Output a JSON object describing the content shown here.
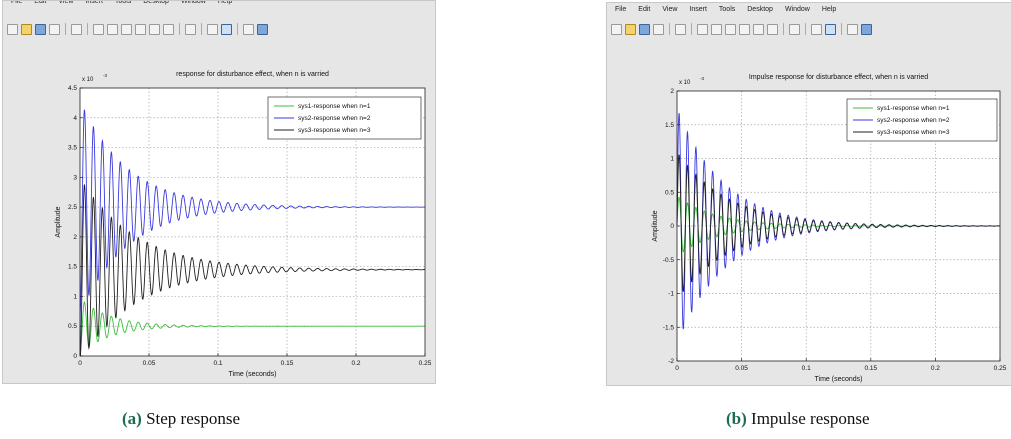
{
  "menu": [
    "File",
    "Edit",
    "View",
    "Insert",
    "Tools",
    "Desktop",
    "Window",
    "Help"
  ],
  "toolbar_icons": [
    "new-figure-icon",
    "open-file-icon",
    "save-icon",
    "print-icon",
    "edit-plot-icon",
    "zoom-in-icon",
    "zoom-out-icon",
    "pan-icon",
    "rotate-icon",
    "data-cursor-icon",
    "brush-icon",
    "link-plot-icon",
    "colorbar-icon",
    "legend-icon",
    "hide-plot-tools-icon",
    "show-plot-tools-icon"
  ],
  "captions": {
    "a": {
      "label": "(a)",
      "text": " Step response"
    },
    "b": {
      "label": "(b)",
      "text": " Impulse response"
    }
  },
  "chart_data": [
    {
      "type": "line",
      "title": "response for disturbance effect, when n is varried",
      "xlabel": "Time (seconds)",
      "ylabel": "Amplitude",
      "y_exponent": "x 10",
      "y_exponent_power": "-3",
      "xlim": [
        0,
        0.25
      ],
      "ylim": [
        0,
        0.0045
      ],
      "xticks": [
        0,
        0.05,
        0.1,
        0.15,
        0.2,
        0.25
      ],
      "xticklabels": [
        "0",
        "0.05",
        "0.1",
        "0.15",
        "0.2",
        "0.25"
      ],
      "yticks": [
        0,
        0.0005,
        0.001,
        0.0015,
        0.002,
        0.0025,
        0.003,
        0.0035,
        0.004,
        0.0045
      ],
      "yticklabels": [
        "0",
        "0.5",
        "1",
        "1.5",
        "2",
        "2.5",
        "3",
        "3.5",
        "4",
        "4.5"
      ],
      "grid": true,
      "legend_position": "top-right",
      "series": [
        {
          "name": "sys1-response when n=1",
          "color": "#3bbf3b",
          "final": 0.0005,
          "peak": 0.00097,
          "tau": 0.022,
          "period": 0.0065
        },
        {
          "name": "sys2-response when n=2",
          "color": "#3a3ae0",
          "final": 0.0025,
          "peak": 0.0043,
          "tau": 0.034,
          "period": 0.0065
        },
        {
          "name": "sys3-response when n=3",
          "color": "#202020",
          "final": 0.00145,
          "peak": 0.003,
          "tau": 0.04,
          "period": 0.0065
        }
      ]
    },
    {
      "type": "line",
      "title": "Impulse response for disturbance effect, when n is varried",
      "xlabel": "Time (seconds)",
      "ylabel": "Amplitude",
      "y_exponent": "x 10",
      "y_exponent_power": "-3",
      "xlim": [
        0,
        0.25
      ],
      "ylim": [
        -2,
        2
      ],
      "xticks": [
        0,
        0.05,
        0.1,
        0.15,
        0.2,
        0.25
      ],
      "xticklabels": [
        "0",
        "0.05",
        "0.1",
        "0.15",
        "0.2",
        "0.25"
      ],
      "yticks": [
        -2,
        -1.5,
        -1,
        -0.5,
        0,
        0.5,
        1,
        1.5,
        2
      ],
      "yticklabels": [
        "-2",
        "-1.5",
        "-1",
        "-0.5",
        "0",
        "0.5",
        "1",
        "1.5",
        "2"
      ],
      "grid": true,
      "legend_position": "top-right",
      "series": [
        {
          "name": "sys1-response when n=1",
          "color": "#3bbf3b",
          "amp": 0.45,
          "tau": 0.03,
          "period": 0.0065
        },
        {
          "name": "sys2-response when n=2",
          "color": "#3a3ae0",
          "amp": 1.75,
          "tau": 0.036,
          "period": 0.0065
        },
        {
          "name": "sys3-response when n=3",
          "color": "#202020",
          "amp": 1.1,
          "tau": 0.04,
          "period": 0.0065
        }
      ]
    }
  ]
}
